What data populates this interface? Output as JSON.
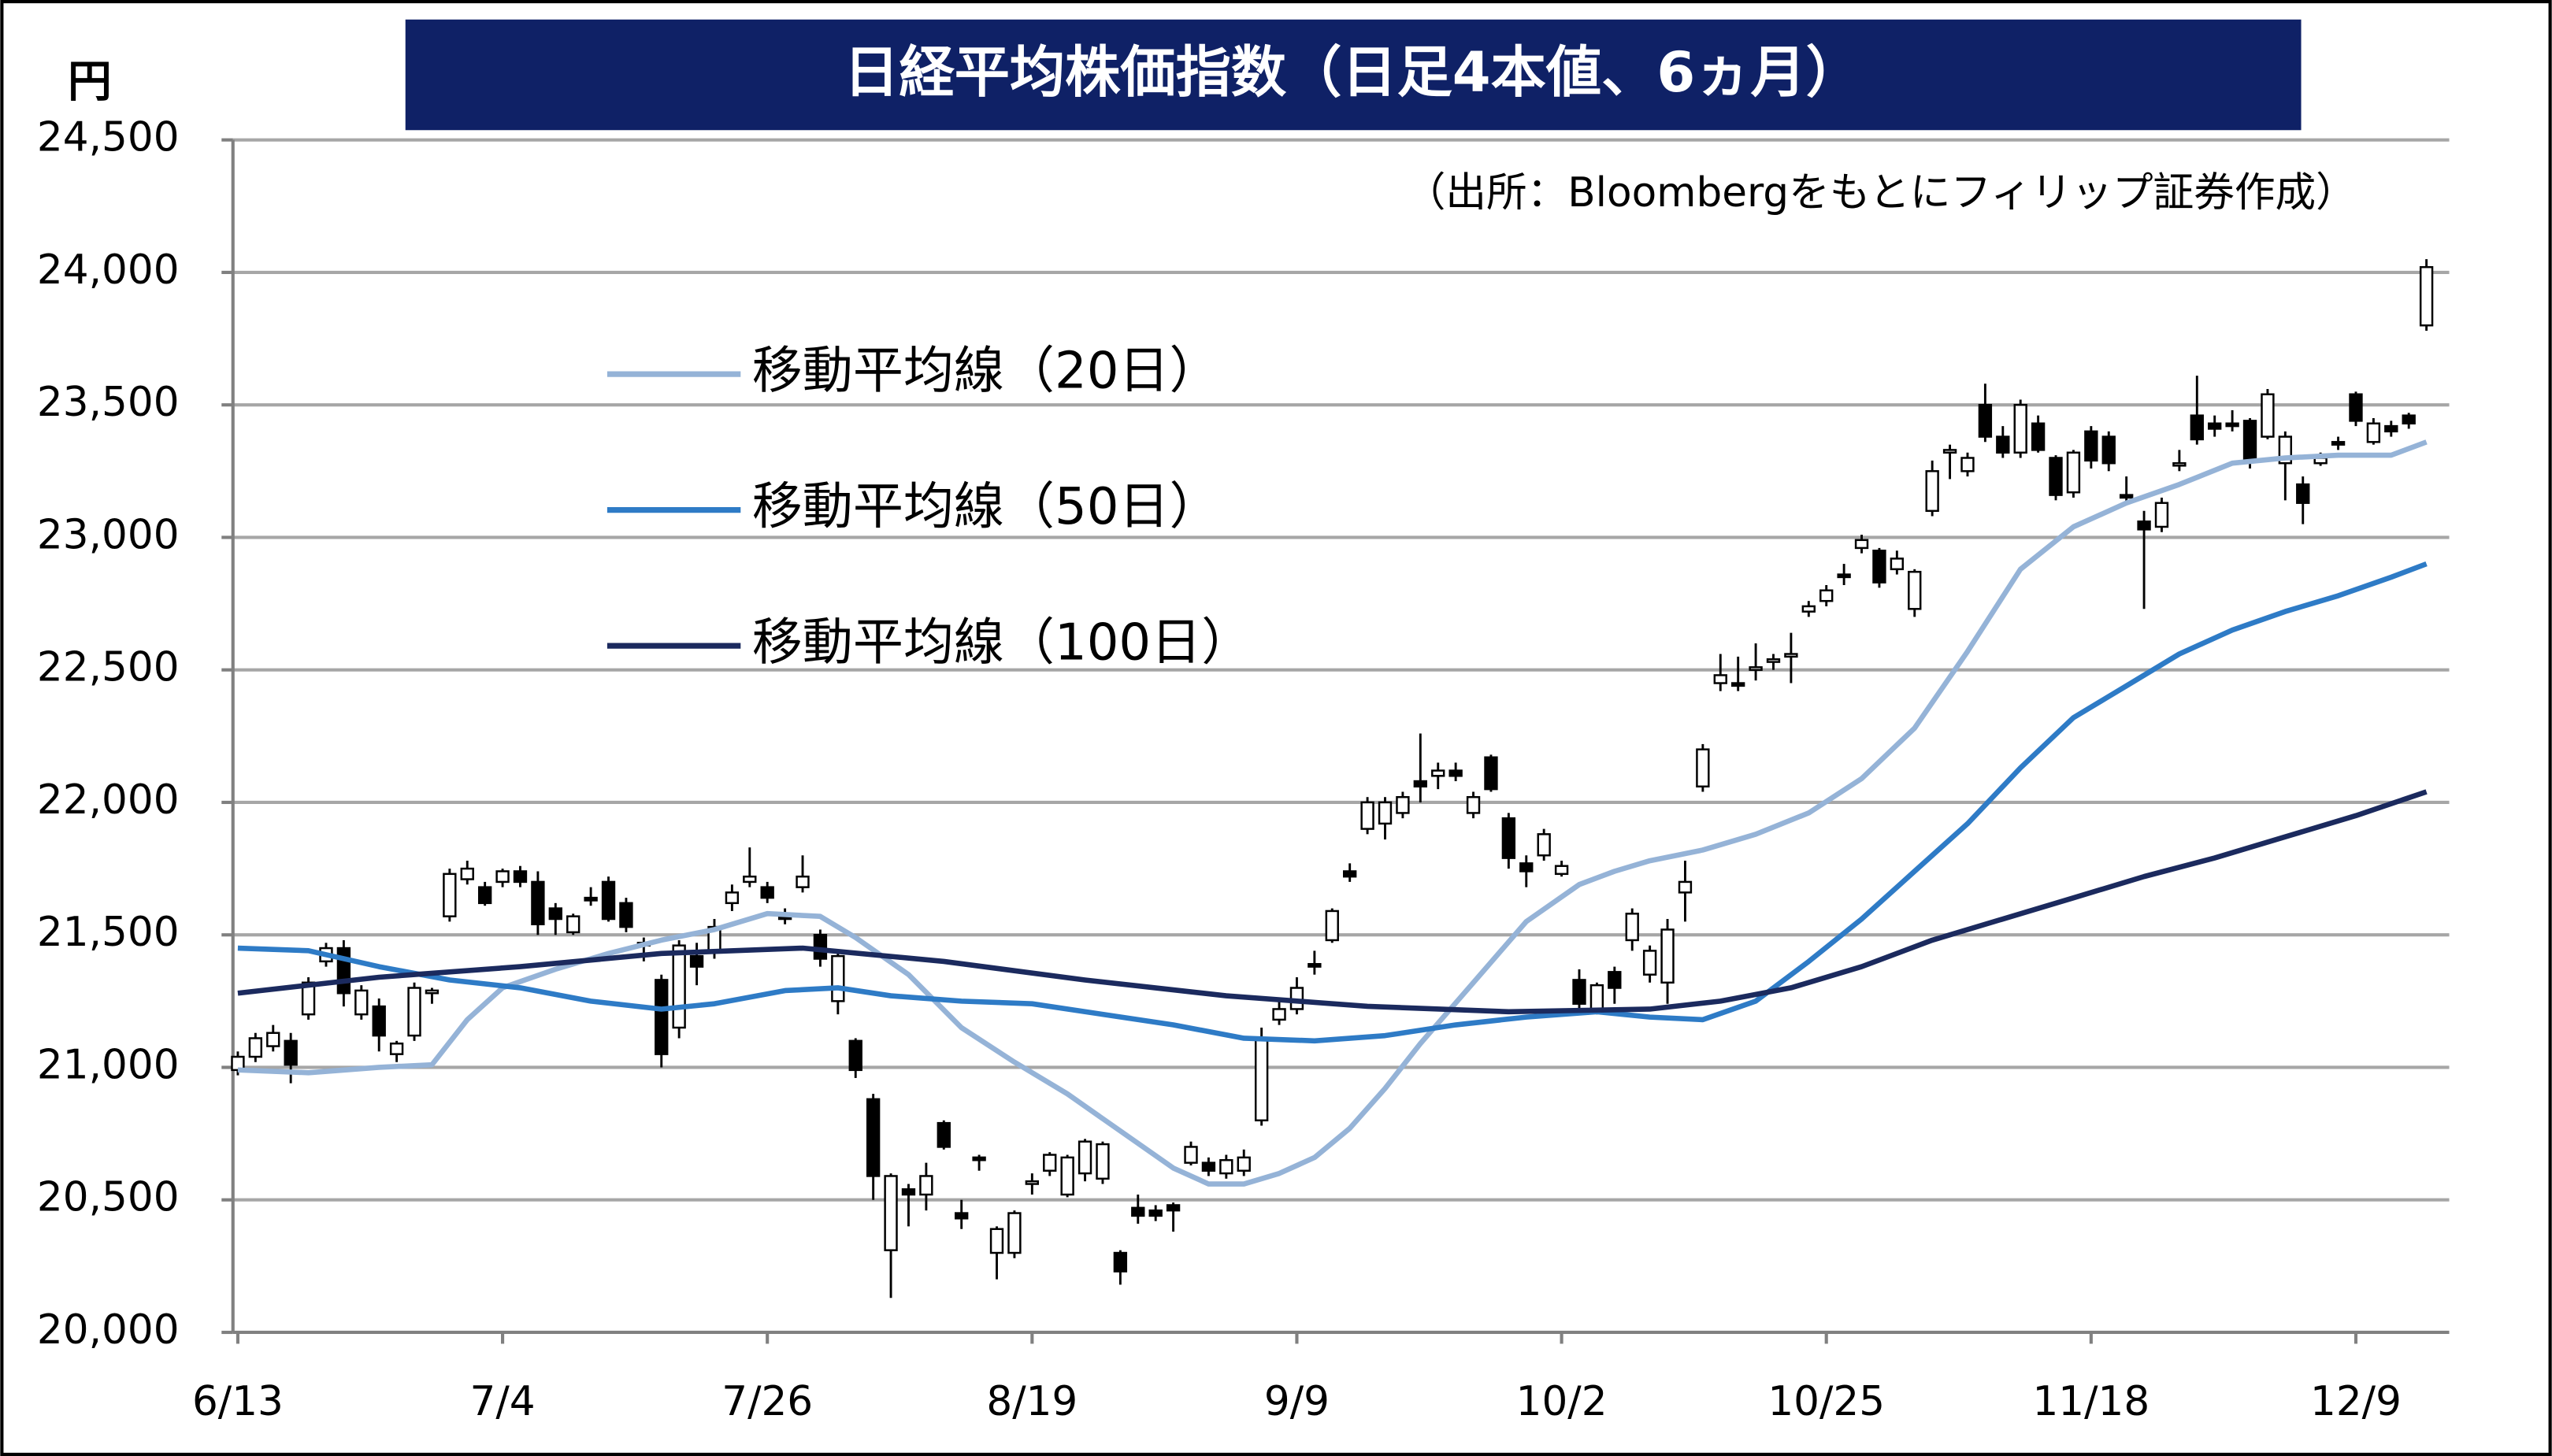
{
  "chart_data": {
    "type": "candlestick",
    "title": "日経平均株価指数（日足4本値、6ヵ月）",
    "subtitle": "（出所：Bloombergをもとにフィリップ証券作成）",
    "y_label": "円",
    "categories": [
      "6/13",
      null,
      null,
      null,
      null,
      null,
      null,
      null,
      null,
      null,
      null,
      null,
      null,
      null,
      null,
      "7/4",
      null,
      null,
      null,
      null,
      null,
      null,
      null,
      null,
      null,
      null,
      null,
      null,
      null,
      null,
      "7/26",
      null,
      null,
      null,
      null,
      null,
      null,
      null,
      null,
      null,
      null,
      null,
      null,
      null,
      null,
      "8/19",
      null,
      null,
      null,
      null,
      null,
      null,
      null,
      null,
      null,
      null,
      null,
      null,
      null,
      null,
      "9/9",
      null,
      null,
      null,
      null,
      null,
      null,
      null,
      null,
      null,
      null,
      null,
      null,
      null,
      null,
      "10/2",
      null,
      null,
      null,
      null,
      null,
      null,
      null,
      null,
      null,
      null,
      null,
      null,
      null,
      null,
      "10/25",
      null,
      null,
      null,
      null,
      null,
      null,
      null,
      null,
      null,
      null,
      null,
      null,
      null,
      null,
      "11/18",
      null,
      null,
      null,
      null,
      null,
      null,
      null,
      null,
      null,
      null,
      null,
      null,
      null,
      null,
      "12/9",
      null,
      null,
      null,
      null
    ],
    "open": [
      20990,
      21040,
      21080,
      21100,
      21200,
      21400,
      21450,
      21200,
      21230,
      21050,
      21120,
      21280,
      21570,
      21710,
      21680,
      21700,
      21740,
      21700,
      21600,
      21510,
      21640,
      21700,
      21620,
      21470,
      21330,
      21150,
      21420,
      21440,
      21620,
      21700,
      21680,
      21570,
      21680,
      21500,
      21250,
      21100,
      20880,
      20310,
      20540,
      20520,
      20790,
      20450,
      20660,
      20300,
      20300,
      20560,
      20610,
      20520,
      20600,
      20580,
      20300,
      20470,
      20460,
      20480,
      20640,
      20640,
      20600,
      20610,
      20800,
      21180,
      21220,
      21390,
      21480,
      21740,
      21900,
      21920,
      21960,
      22080,
      22100,
      22120,
      21960,
      22170,
      21940,
      21770,
      21800,
      21730,
      21330,
      21220,
      21360,
      21480,
      21350,
      21320,
      21660,
      22060,
      22450,
      22450,
      22500,
      22530,
      22550,
      22720,
      22760,
      22860,
      22960,
      22950,
      22880,
      22730,
      23100,
      23320,
      23250,
      23500,
      23380,
      23320,
      23430,
      23300,
      23170,
      23400,
      23380,
      23160,
      23060,
      23040,
      23280,
      23460,
      23430,
      23430,
      23440,
      23380,
      23280,
      23200,
      23280,
      23360,
      23540,
      23360,
      23420,
      23460,
      23800
    ],
    "high": [
      21060,
      21130,
      21160,
      21130,
      21340,
      21470,
      21480,
      21310,
      21260,
      21100,
      21320,
      21300,
      21750,
      21780,
      21700,
      21750,
      21760,
      21740,
      21620,
      21580,
      21680,
      21720,
      21640,
      21490,
      21350,
      21480,
      21470,
      21560,
      21690,
      21830,
      21700,
      21600,
      21800,
      21520,
      21440,
      21110,
      20900,
      20600,
      20560,
      20640,
      20800,
      20500,
      20670,
      20400,
      20460,
      20600,
      20680,
      20670,
      20730,
      20720,
      20310,
      20520,
      20480,
      20490,
      20720,
      20660,
      20670,
      20690,
      21150,
      21250,
      21340,
      21440,
      21600,
      21770,
      22020,
      22020,
      22040,
      22260,
      22150,
      22150,
      22040,
      22180,
      21960,
      21800,
      21900,
      21780,
      21370,
      21320,
      21380,
      21600,
      21460,
      21560,
      21780,
      22220,
      22560,
      22550,
      22600,
      22560,
      22640,
      22760,
      22820,
      22900,
      23010,
      22960,
      22950,
      22880,
      23290,
      23350,
      23320,
      23580,
      23420,
      23520,
      23460,
      23310,
      23330,
      23420,
      23400,
      23230,
      23100,
      23150,
      23330,
      23610,
      23460,
      23480,
      23450,
      23560,
      23400,
      23230,
      23320,
      23380,
      23550,
      23450,
      23440,
      23470,
      24050
    ],
    "low": [
      20970,
      21020,
      21060,
      20940,
      21180,
      21380,
      21230,
      21180,
      21060,
      21020,
      21100,
      21240,
      21550,
      21690,
      21610,
      21680,
      21680,
      21500,
      21500,
      21500,
      21610,
      21550,
      21510,
      21400,
      21000,
      21110,
      21310,
      21410,
      21590,
      21680,
      21620,
      21540,
      21660,
      21380,
      21200,
      20960,
      20500,
      20130,
      20400,
      20460,
      20690,
      20390,
      20610,
      20200,
      20280,
      20520,
      20590,
      20510,
      20570,
      20560,
      20180,
      20410,
      20420,
      20380,
      20630,
      20590,
      20580,
      20590,
      20780,
      21160,
      21200,
      21350,
      21470,
      21700,
      21880,
      21860,
      21940,
      22000,
      22050,
      22080,
      21940,
      22040,
      21750,
      21680,
      21780,
      21720,
      21220,
      21200,
      21240,
      21440,
      21320,
      21240,
      21550,
      22040,
      22420,
      22420,
      22460,
      22500,
      22450,
      22700,
      22740,
      22820,
      22940,
      22810,
      22860,
      22700,
      23080,
      23220,
      23230,
      23360,
      23300,
      23300,
      23320,
      23140,
      23150,
      23260,
      23250,
      23130,
      22730,
      23020,
      23250,
      23350,
      23380,
      23400,
      23260,
      23370,
      23140,
      23050,
      23270,
      23330,
      23420,
      23350,
      23380,
      23410,
      23780
    ],
    "close": [
      21040,
      21110,
      21130,
      21010,
      21320,
      21450,
      21280,
      21290,
      21120,
      21090,
      21300,
      21290,
      21730,
      21750,
      21620,
      21740,
      21700,
      21540,
      21560,
      21570,
      21630,
      21560,
      21530,
      21460,
      21050,
      21460,
      21380,
      21530,
      21660,
      21720,
      21640,
      21560,
      21720,
      21410,
      21420,
      20990,
      20590,
      20590,
      20520,
      20590,
      20700,
      20430,
      20650,
      20390,
      20450,
      20570,
      20670,
      20660,
      20720,
      20710,
      20230,
      20440,
      20440,
      20460,
      20700,
      20610,
      20650,
      20660,
      21110,
      21220,
      21300,
      21380,
      21590,
      21720,
      22000,
      22000,
      22020,
      22060,
      22120,
      22100,
      22020,
      22050,
      21790,
      21740,
      21880,
      21760,
      21240,
      21310,
      21300,
      21580,
      21440,
      21520,
      21700,
      22200,
      22480,
      22440,
      22510,
      22540,
      22560,
      22740,
      22800,
      22850,
      22990,
      22830,
      22920,
      22870,
      23250,
      23330,
      23300,
      23380,
      23320,
      23500,
      23330,
      23160,
      23320,
      23290,
      23280,
      23150,
      23030,
      23130,
      23280,
      23370,
      23410,
      23420,
      23290,
      23540,
      23380,
      23130,
      23300,
      23350,
      23440,
      23430,
      23400,
      23430,
      24020
    ],
    "series": [
      {
        "name": "移動平均線（20日）",
        "type": "line",
        "color": "#95b3d7",
        "x": [
          0,
          4,
          8,
          11,
          13,
          15,
          18,
          21,
          24,
          27,
          30,
          33,
          35,
          38,
          41,
          44,
          47,
          50,
          53,
          55,
          57,
          59,
          61,
          63,
          65,
          67,
          70,
          73,
          76,
          78,
          80,
          83,
          86,
          89,
          92,
          95,
          98,
          101,
          104,
          107,
          110,
          113,
          116,
          119,
          122,
          124
        ],
        "values": [
          20990,
          20980,
          21000,
          21010,
          21180,
          21300,
          21370,
          21430,
          21480,
          21520,
          21580,
          21570,
          21490,
          21350,
          21150,
          21020,
          20900,
          20760,
          20620,
          20560,
          20560,
          20600,
          20660,
          20770,
          20920,
          21090,
          21320,
          21550,
          21690,
          21740,
          21780,
          21820,
          21880,
          21960,
          22090,
          22280,
          22570,
          22880,
          23040,
          23130,
          23200,
          23280,
          23300,
          23310,
          23310,
          23360
        ]
      },
      {
        "name": "移動平均線（50日）",
        "type": "line",
        "color": "#2e7bc6",
        "x": [
          0,
          4,
          8,
          12,
          16,
          20,
          24,
          27,
          31,
          34,
          37,
          41,
          45,
          49,
          53,
          57,
          61,
          65,
          69,
          73,
          77,
          80,
          83,
          86,
          89,
          92,
          95,
          98,
          101,
          104,
          107,
          110,
          113,
          116,
          119,
          122,
          124
        ],
        "values": [
          21450,
          21440,
          21380,
          21330,
          21300,
          21250,
          21220,
          21240,
          21290,
          21300,
          21270,
          21250,
          21240,
          21200,
          21160,
          21110,
          21100,
          21120,
          21160,
          21190,
          21210,
          21190,
          21180,
          21250,
          21400,
          21560,
          21740,
          21920,
          22130,
          22320,
          22440,
          22560,
          22650,
          22720,
          22780,
          22850,
          22900
        ]
      },
      {
        "name": "移動平均線（100日）",
        "type": "line",
        "color": "#1b2a5e",
        "x": [
          0,
          8,
          16,
          24,
          32,
          40,
          48,
          56,
          64,
          72,
          80,
          84,
          88,
          92,
          96,
          100,
          104,
          108,
          112,
          116,
          120,
          124
        ],
        "values": [
          21280,
          21340,
          21380,
          21430,
          21450,
          21400,
          21330,
          21270,
          21230,
          21210,
          21220,
          21250,
          21300,
          21380,
          21480,
          21560,
          21640,
          21720,
          21790,
          21870,
          21950,
          22040
        ]
      }
    ],
    "ylim": [
      20000,
      24500
    ],
    "yticks": [
      {
        "value": 20000,
        "label": "20,000"
      },
      {
        "value": 20500,
        "label": "20,500"
      },
      {
        "value": 21000,
        "label": "21,000"
      },
      {
        "value": 21500,
        "label": "21,500"
      },
      {
        "value": 22000,
        "label": "22,000"
      },
      {
        "value": 22500,
        "label": "22,500"
      },
      {
        "value": 23000,
        "label": "23,000"
      },
      {
        "value": 23500,
        "label": "23,500"
      },
      {
        "value": 24000,
        "label": "24,000"
      },
      {
        "value": 24500,
        "label": "24,500"
      }
    ],
    "grid": true,
    "up_color": "#ffffff",
    "down_color": "#000000"
  }
}
